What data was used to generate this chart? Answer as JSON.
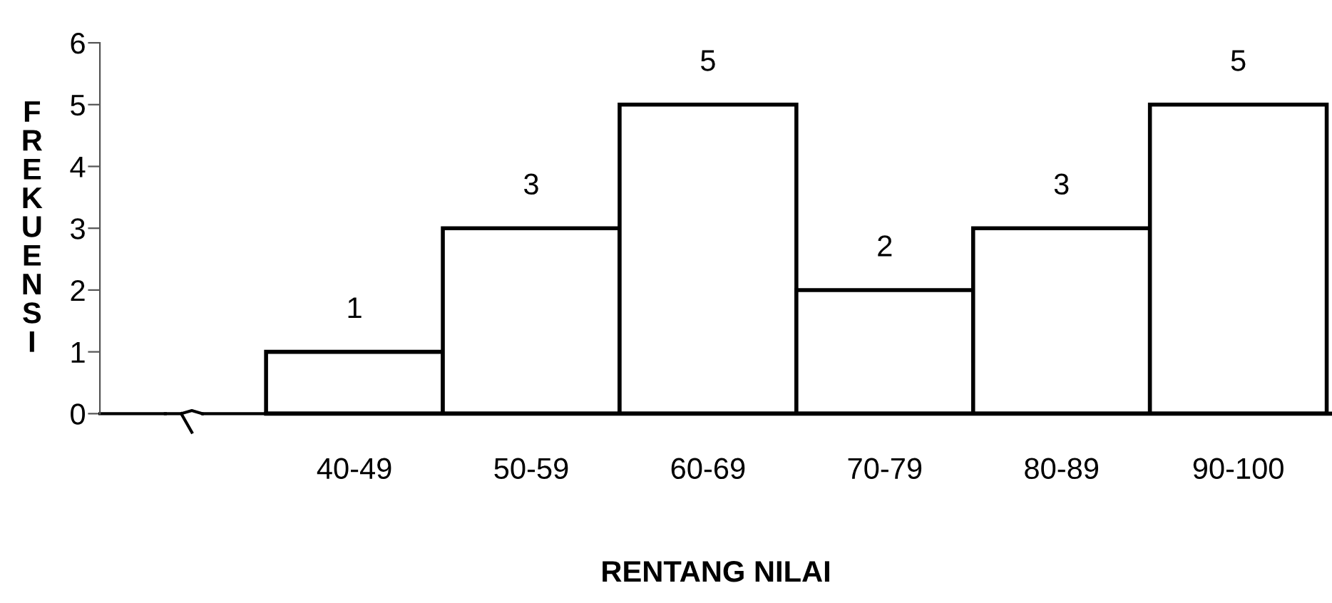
{
  "chart_data": {
    "type": "bar",
    "xlabel": "RENTANG NILAI",
    "ylabel": "FREKUENSI",
    "categories": [
      "40-49",
      "50-59",
      "60-69",
      "70-79",
      "80-89",
      "90-100"
    ],
    "values": [
      1,
      3,
      5,
      2,
      3,
      5
    ],
    "color": "#ffffff",
    "ylim": [
      0,
      6
    ],
    "yticks": [
      0,
      1,
      2,
      3,
      4,
      5,
      6
    ],
    "grid": false,
    "data_labels": true
  }
}
